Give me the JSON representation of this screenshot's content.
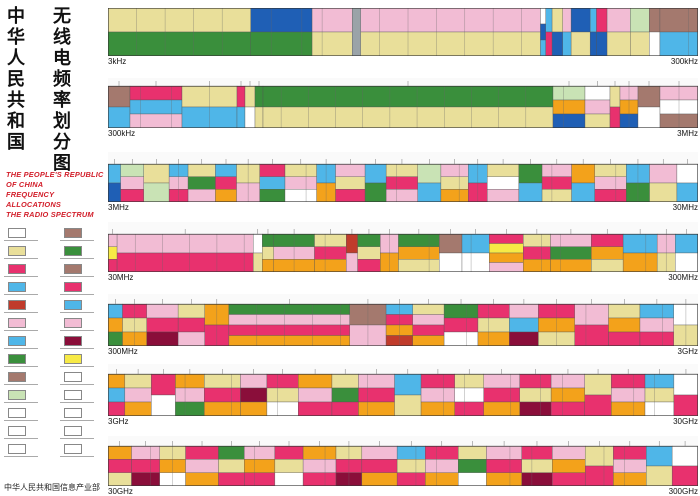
{
  "title": {
    "chinese_col1": "中华人民共和国",
    "chinese_col2": "无线电频率划分图",
    "english_lines": [
      "THE PEOPLE'S REPUBLIC",
      "OF CHINA",
      "FREQUENCY ALLOCATIONS",
      "THE RADIO SPECTRUM"
    ]
  },
  "footer": "中华人民共和国信息产业部",
  "colors": {
    "fixed": "#e9df9a",
    "mobile": "#f2bcd4",
    "broadcasting": "#1f5fb5",
    "radionavigation": "#3a8f3c",
    "satellite": "#e8316e",
    "amateur": "#f3a21b",
    "aeronautical": "#a4796e",
    "space": "#4fb6e8",
    "radioastronomy": "#8a0e3a",
    "meteorological": "#f7ea46",
    "standard_freq": "#9aa3a8",
    "radiolocation": "#c03b2b",
    "green_light": "#5db845",
    "pale_green": "#c9e3b5",
    "white": "#ffffff"
  },
  "bands": [
    {
      "start_label": "3kHz",
      "end_label": "300kHz"
    },
    {
      "start_label": "300kHz",
      "end_label": "3MHz"
    },
    {
      "start_label": "3MHz",
      "end_label": "30MHz"
    },
    {
      "start_label": "30MHz",
      "end_label": "300MHz"
    },
    {
      "start_label": "300MHz",
      "end_label": "3GHz"
    },
    {
      "start_label": "3GHz",
      "end_label": "30GHz"
    },
    {
      "start_label": "30GHz",
      "end_label": "300GHz"
    }
  ]
}
